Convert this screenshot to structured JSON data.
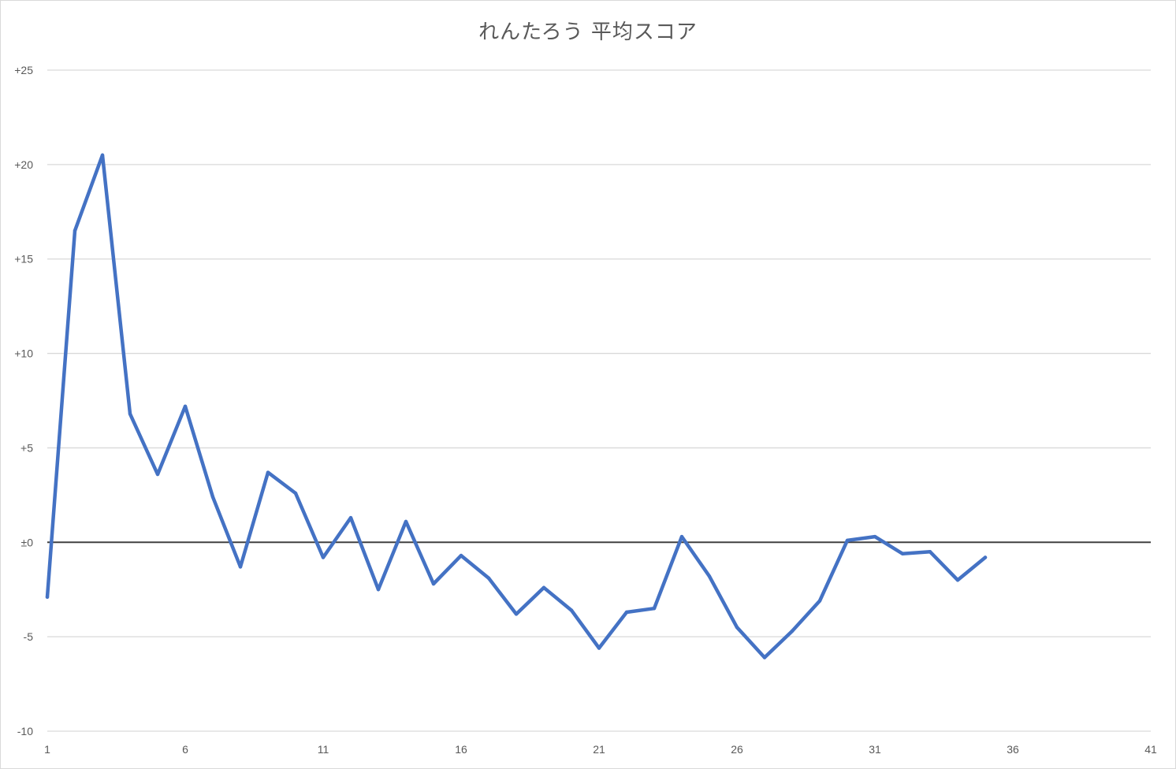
{
  "chart_data": {
    "type": "line",
    "title": "れんたろう 平均スコア",
    "xlabel": "",
    "ylabel": "",
    "xlim": [
      1,
      41
    ],
    "ylim": [
      -10,
      25
    ],
    "x_ticks": [
      1,
      6,
      11,
      16,
      21,
      26,
      31,
      36,
      41
    ],
    "y_ticks": [
      {
        "value": 25,
        "label": "+25"
      },
      {
        "value": 20,
        "label": "+20"
      },
      {
        "value": 15,
        "label": "+15"
      },
      {
        "value": 10,
        "label": "+10"
      },
      {
        "value": 5,
        "label": "+5"
      },
      {
        "value": 0,
        "label": "±0"
      },
      {
        "value": -5,
        "label": "-5"
      },
      {
        "value": -10,
        "label": "-10"
      }
    ],
    "grid": true,
    "legend": "none",
    "line_color": "#4472c4",
    "zero_line_color": "#404040",
    "grid_color": "#d9d9d9",
    "series": [
      {
        "x": [
          1,
          2,
          3,
          4,
          5,
          6,
          7,
          8,
          9,
          10,
          11,
          12,
          13,
          14,
          15,
          16,
          17,
          18,
          19,
          20,
          21,
          22,
          23,
          24,
          25,
          26,
          27,
          28,
          29,
          30,
          31,
          32,
          33,
          34,
          35
        ],
        "values": [
          -2.9,
          16.5,
          20.5,
          6.8,
          3.6,
          7.2,
          2.4,
          -1.3,
          3.7,
          2.6,
          -0.8,
          1.3,
          -2.5,
          1.1,
          -2.2,
          -0.7,
          -1.9,
          -3.8,
          -2.4,
          -3.6,
          -5.6,
          -3.7,
          -3.5,
          0.3,
          -1.8,
          -4.5,
          -6.1,
          -4.7,
          -3.1,
          0.1,
          0.3,
          -0.6,
          -0.5,
          -2.0,
          -0.8
        ]
      }
    ]
  }
}
